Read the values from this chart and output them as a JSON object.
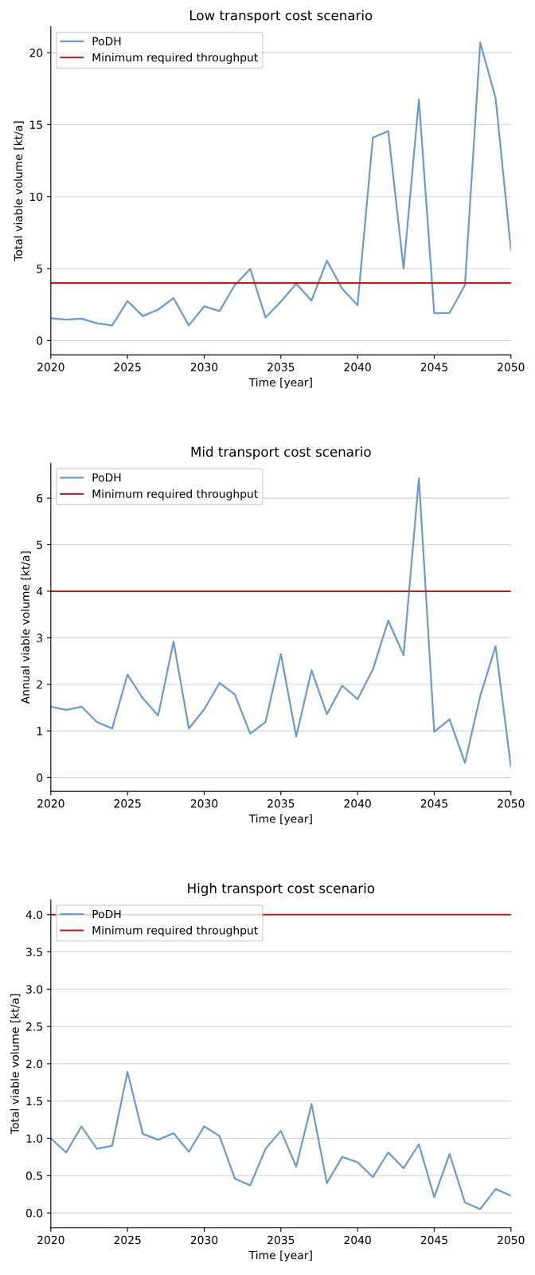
{
  "chart_data": [
    {
      "type": "line",
      "title": "Low transport cost scenario",
      "xlabel": "Time [year]",
      "ylabel": "Total viable volume [kt/a]",
      "x": [
        2020,
        2021,
        2022,
        2023,
        2024,
        2025,
        2026,
        2027,
        2028,
        2029,
        2030,
        2031,
        2032,
        2033,
        2034,
        2035,
        2036,
        2037,
        2038,
        2039,
        2040,
        2041,
        2042,
        2043,
        2044,
        2045,
        2046,
        2047,
        2048,
        2049,
        2050
      ],
      "series": [
        {
          "name": "PoDH",
          "color": "#6b9bc8",
          "values": [
            1.55,
            1.45,
            1.52,
            1.2,
            1.05,
            2.75,
            1.7,
            2.15,
            2.95,
            1.05,
            2.38,
            2.05,
            3.85,
            4.98,
            1.6,
            2.7,
            3.95,
            2.78,
            5.55,
            3.6,
            2.45,
            14.1,
            14.55,
            5.0,
            16.75,
            1.9,
            1.92,
            3.85,
            20.7,
            16.85,
            6.3
          ]
        }
      ],
      "ref_lines": [
        {
          "axis": "y",
          "value": 4,
          "label": "Minimum required throughput",
          "color": "#b22222"
        }
      ],
      "xlim": [
        2020,
        2050
      ],
      "xticks": [
        2020,
        2025,
        2030,
        2035,
        2040,
        2045,
        2050
      ],
      "ylim": [
        -1,
        21.8
      ],
      "yticks": [
        0,
        5,
        10,
        15,
        20
      ],
      "grid": "y",
      "legend": "top left"
    },
    {
      "type": "line",
      "title": "Mid transport cost scenario",
      "xlabel": "Time [year]",
      "ylabel": "Annual viable volume [kt/a]",
      "x": [
        2020,
        2021,
        2022,
        2023,
        2024,
        2025,
        2026,
        2027,
        2028,
        2029,
        2030,
        2031,
        2032,
        2033,
        2034,
        2035,
        2036,
        2037,
        2038,
        2039,
        2040,
        2041,
        2042,
        2043,
        2044,
        2045,
        2046,
        2047,
        2048,
        2049,
        2050
      ],
      "series": [
        {
          "name": "PoDH",
          "color": "#6b9bc8",
          "values": [
            1.52,
            1.45,
            1.52,
            1.19,
            1.05,
            2.21,
            1.7,
            1.33,
            2.92,
            1.05,
            1.46,
            2.03,
            1.78,
            0.94,
            1.19,
            2.65,
            0.88,
            2.3,
            1.36,
            1.97,
            1.68,
            2.32,
            3.37,
            2.63,
            6.43,
            0.98,
            1.25,
            0.31,
            1.75,
            2.82,
            0.23
          ]
        }
      ],
      "ref_lines": [
        {
          "axis": "y",
          "value": 4,
          "label": "Minimum required throughput",
          "color": "#b22222"
        }
      ],
      "xlim": [
        2020,
        2050
      ],
      "xticks": [
        2020,
        2025,
        2030,
        2035,
        2040,
        2045,
        2050
      ],
      "ylim": [
        -0.3,
        6.75
      ],
      "yticks": [
        0,
        1,
        2,
        3,
        4,
        5,
        6
      ],
      "grid": "y",
      "legend": "top left"
    },
    {
      "type": "line",
      "title": "High transport cost scenario",
      "xlabel": "Time [year]",
      "ylabel": "Total viable volume [kt/a]",
      "x": [
        2020,
        2021,
        2022,
        2023,
        2024,
        2025,
        2026,
        2027,
        2028,
        2029,
        2030,
        2031,
        2032,
        2033,
        2034,
        2035,
        2036,
        2037,
        2038,
        2039,
        2040,
        2041,
        2042,
        2043,
        2044,
        2045,
        2046,
        2047,
        2048,
        2049,
        2050
      ],
      "series": [
        {
          "name": "PoDH",
          "color": "#6b9bc8",
          "values": [
            1.0,
            0.81,
            1.16,
            0.86,
            0.9,
            1.89,
            1.06,
            0.98,
            1.07,
            0.82,
            1.16,
            1.03,
            0.46,
            0.37,
            0.86,
            1.1,
            0.62,
            1.46,
            0.4,
            0.75,
            0.68,
            0.48,
            0.81,
            0.6,
            0.92,
            0.21,
            0.79,
            0.14,
            0.05,
            0.32,
            0.23
          ]
        }
      ],
      "ref_lines": [
        {
          "axis": "y",
          "value": 4,
          "label": "Minimum required throughput",
          "color": "#b22222"
        }
      ],
      "xlim": [
        2020,
        2050
      ],
      "xticks": [
        2020,
        2025,
        2030,
        2035,
        2040,
        2045,
        2050
      ],
      "ylim": [
        -0.2,
        4.2
      ],
      "yticks": [
        {
          "value": 0,
          "label": "0.0"
        },
        0.5,
        {
          "value": 1,
          "label": "1.0"
        },
        1.5,
        {
          "value": 2,
          "label": "2.0"
        },
        2.5,
        {
          "value": 3,
          "label": "3.0"
        },
        3.5,
        {
          "value": 4,
          "label": "4.0"
        }
      ],
      "grid": "y",
      "legend": "top left"
    }
  ]
}
